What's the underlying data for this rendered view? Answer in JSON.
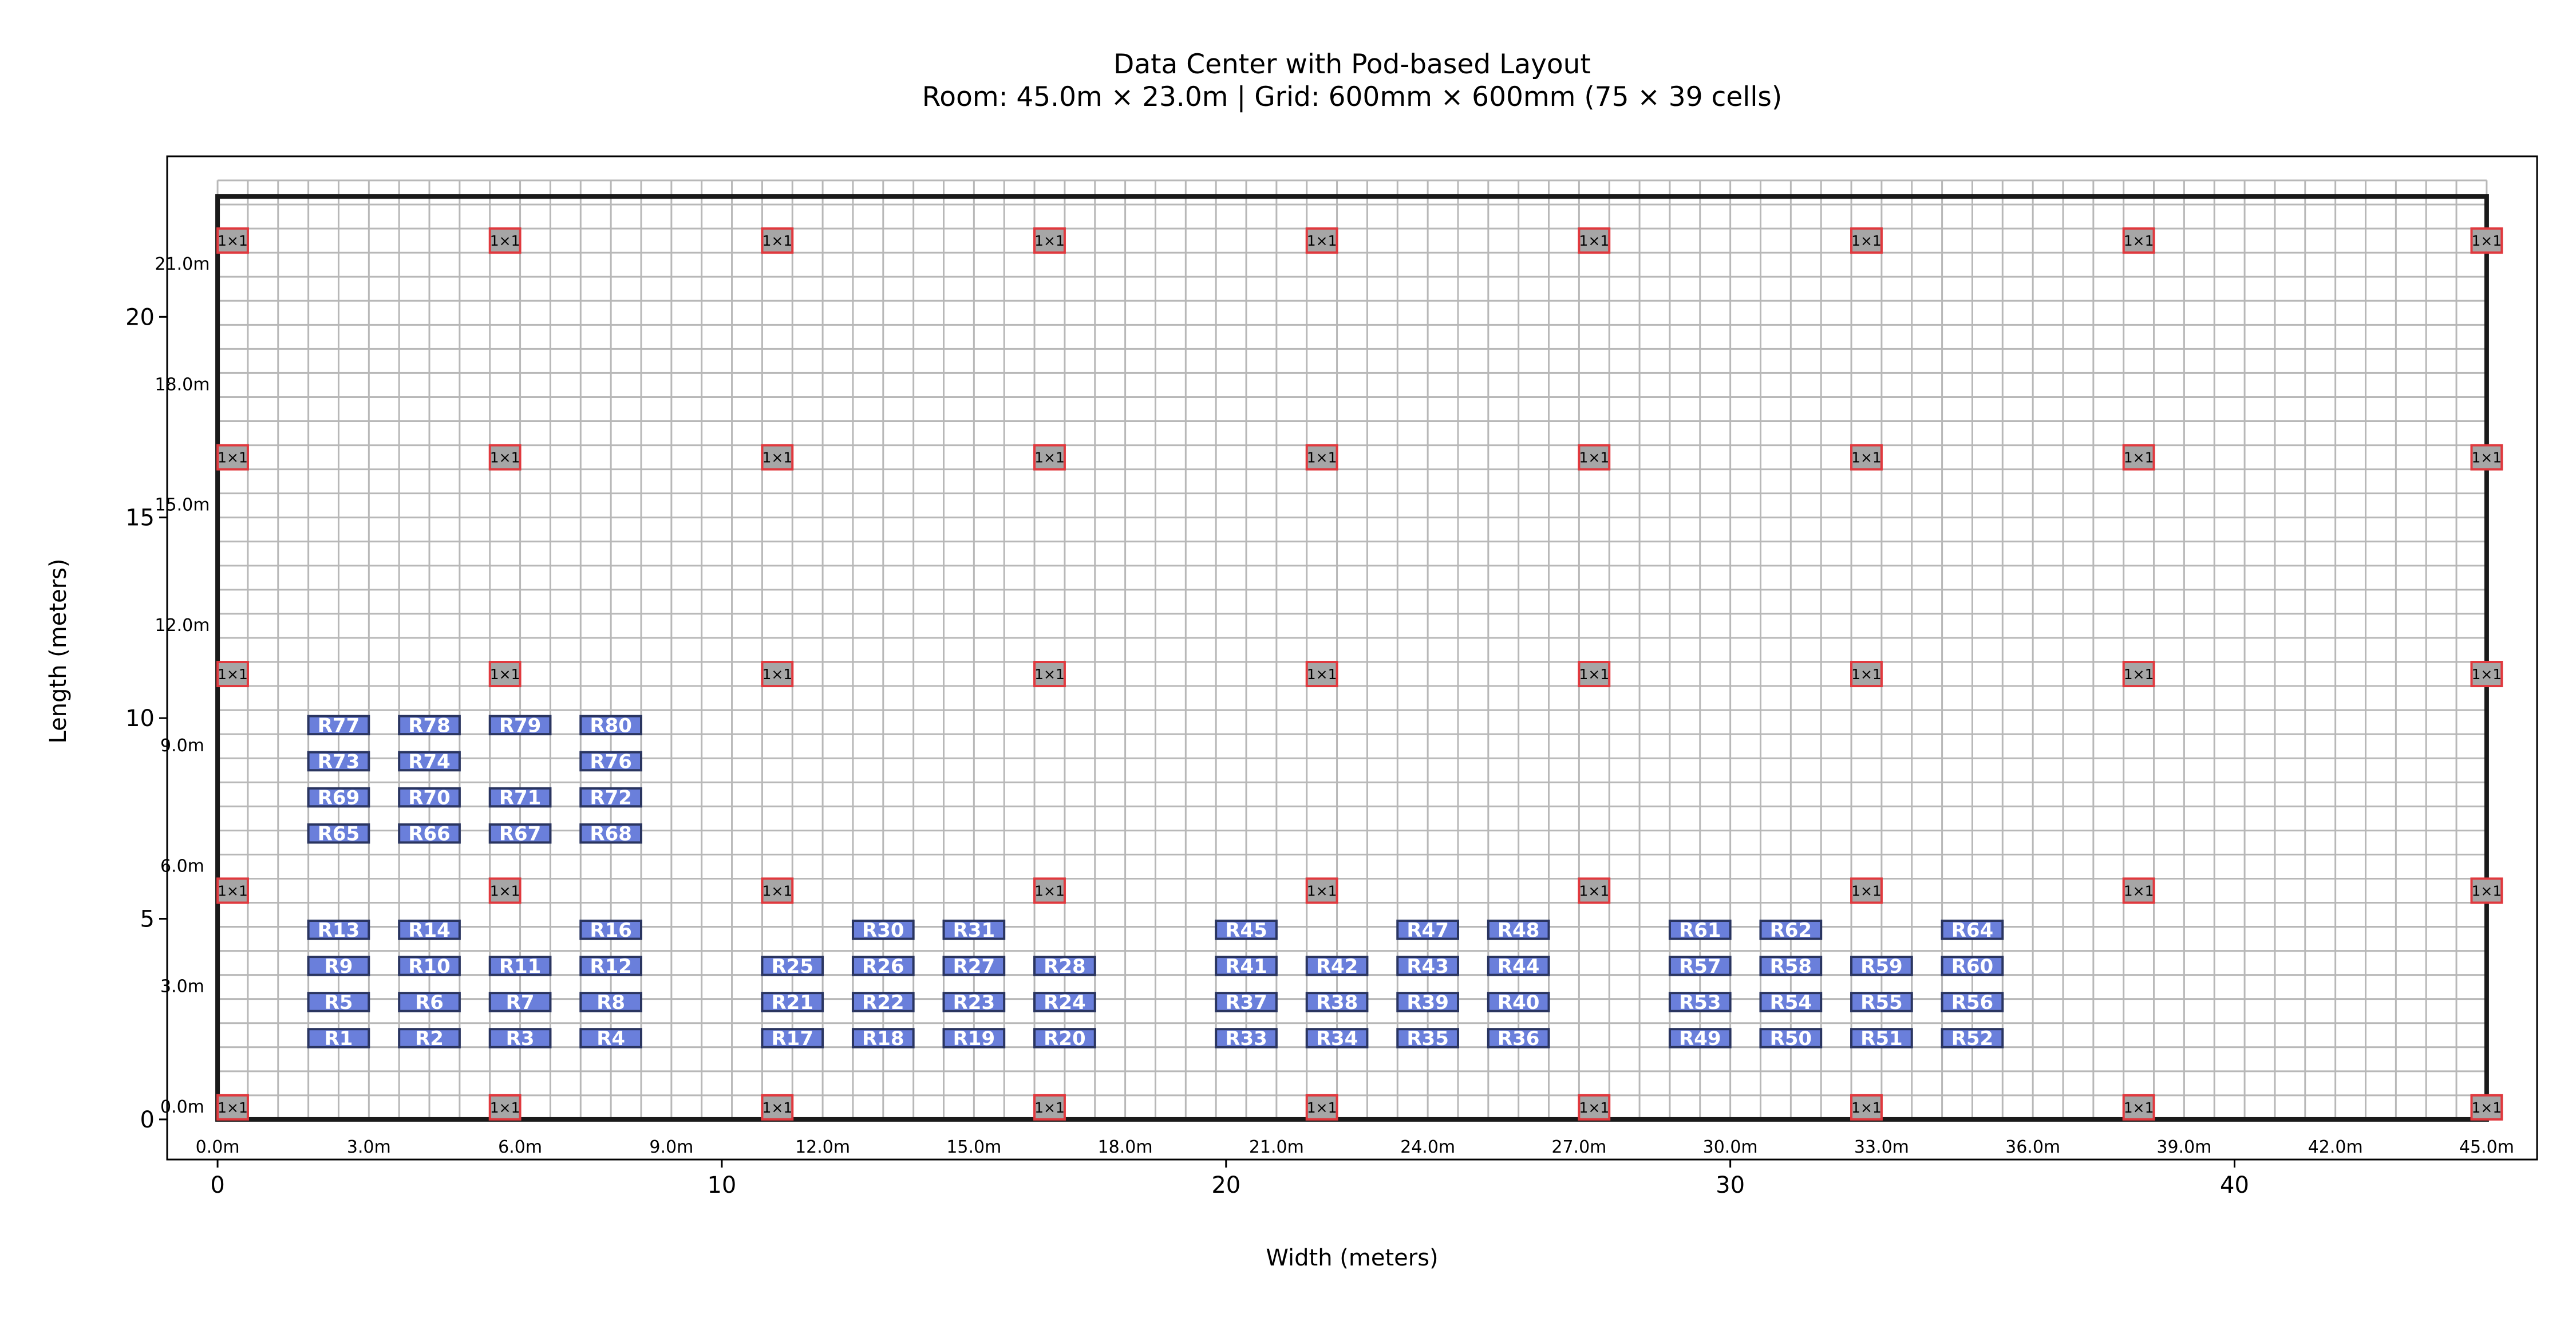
{
  "title_line1": "Data Center with Pod-based Layout",
  "title_line2": "Room: 45.0m × 23.0m | Grid: 600mm × 600mm (75 × 39 cells)",
  "xlabel": "Width (meters)",
  "ylabel": "Length (meters)",
  "colors": {
    "rack_fill": "#6a7fdb",
    "rack_edge": "#2a3560",
    "rack_text": "#ffffff",
    "column_fill": "#a6a6a6",
    "column_edge": "#e0393e",
    "grid_line": "#b8b8b8",
    "wall": "#1a1a1a"
  },
  "room": {
    "width_m": 45.0,
    "length_m": 23.0,
    "cell_m": 0.6,
    "cells_x": 75,
    "cells_y": 39
  },
  "axis": {
    "xlim": [
      -1.0,
      46.0
    ],
    "ylim": [
      -1.0,
      24.0
    ],
    "x_ticks": [
      0,
      10,
      20,
      30,
      40
    ],
    "y_ticks": [
      0,
      5,
      10,
      15,
      20
    ],
    "x_meter_labels": [
      {
        "v": 0,
        "t": "0.0m"
      },
      {
        "v": 3,
        "t": "3.0m"
      },
      {
        "v": 6,
        "t": "6.0m"
      },
      {
        "v": 9,
        "t": "9.0m"
      },
      {
        "v": 12,
        "t": "12.0m"
      },
      {
        "v": 15,
        "t": "15.0m"
      },
      {
        "v": 18,
        "t": "18.0m"
      },
      {
        "v": 21,
        "t": "21.0m"
      },
      {
        "v": 24,
        "t": "24.0m"
      },
      {
        "v": 27,
        "t": "27.0m"
      },
      {
        "v": 30,
        "t": "30.0m"
      },
      {
        "v": 33,
        "t": "33.0m"
      },
      {
        "v": 36,
        "t": "36.0m"
      },
      {
        "v": 39,
        "t": "39.0m"
      },
      {
        "v": 42,
        "t": "42.0m"
      },
      {
        "v": 45,
        "t": "45.0m"
      }
    ],
    "y_meter_labels": [
      {
        "v": 0,
        "t": "0.0m"
      },
      {
        "v": 3,
        "t": "3.0m"
      },
      {
        "v": 6,
        "t": "6.0m"
      },
      {
        "v": 9,
        "t": "9.0m"
      },
      {
        "v": 12,
        "t": "12.0m"
      },
      {
        "v": 15,
        "t": "15.0m"
      },
      {
        "v": 18,
        "t": "18.0m"
      },
      {
        "v": 21,
        "t": "21.0m"
      }
    ]
  },
  "column_label": "1×1",
  "column_xs": [
    0.3,
    5.7,
    11.1,
    16.5,
    21.9,
    27.3,
    32.7,
    38.1,
    45.0
  ],
  "column_rows": [
    {
      "y": 0.3,
      "xs": [
        0.3,
        5.7,
        11.1,
        16.5,
        21.9,
        27.3,
        32.7,
        38.1,
        45.0
      ]
    },
    {
      "y": 5.7,
      "xs": [
        0.3,
        5.7,
        11.1,
        16.5,
        21.9,
        27.3,
        32.7,
        38.1,
        45.0
      ]
    },
    {
      "y": 11.1,
      "xs": [
        0.3,
        5.7,
        11.1,
        16.5,
        21.9,
        27.3,
        32.7,
        38.1,
        45.0
      ]
    },
    {
      "y": 16.5,
      "xs": [
        0.3,
        5.7,
        11.1,
        16.5,
        21.9,
        27.3,
        32.7,
        38.1,
        45.0
      ]
    },
    {
      "y": 21.9,
      "xs": [
        0.3,
        5.7,
        11.1,
        16.5,
        21.9,
        27.3,
        32.7,
        38.1,
        45.0
      ]
    }
  ],
  "rack_rows": [
    {
      "y": 1.8,
      "labels": [
        "R1",
        "R2",
        "R3",
        "R4",
        "R17",
        "R18",
        "R19",
        "R20",
        "R33",
        "R34",
        "R35",
        "R36",
        "R49",
        "R50",
        "R51",
        "R52"
      ]
    },
    {
      "y": 2.7,
      "labels": [
        "R5",
        "R6",
        "R7",
        "R8",
        "R21",
        "R22",
        "R23",
        "R24",
        "R37",
        "R38",
        "R39",
        "R40",
        "R53",
        "R54",
        "R55",
        "R56"
      ]
    },
    {
      "y": 3.6,
      "labels": [
        "R9",
        "R10",
        "R11",
        "R12",
        "R25",
        "R26",
        "R27",
        "R28",
        "R41",
        "R42",
        "R43",
        "R44",
        "R57",
        "R58",
        "R59",
        "R60"
      ]
    },
    {
      "y": 4.5,
      "labels": [
        "R13",
        "R14",
        "",
        "R16",
        "",
        "R30",
        "R31",
        "",
        "R45",
        "",
        "R47",
        "R48",
        "R61",
        "R62",
        "",
        "R64"
      ]
    },
    {
      "y": 6.9,
      "labels": [
        "R65",
        "R66",
        "R67",
        "R68"
      ]
    },
    {
      "y": 7.8,
      "labels": [
        "R69",
        "R70",
        "R71",
        "R72"
      ]
    },
    {
      "y": 8.7,
      "labels": [
        "R73",
        "R74",
        "",
        "R76"
      ]
    },
    {
      "y": 9.6,
      "labels": [
        "R77",
        "R78",
        "R79",
        "R80"
      ]
    }
  ],
  "rack_col_xs": [
    1.8,
    3.6,
    5.4,
    7.2,
    10.8,
    12.6,
    14.4,
    16.2,
    19.8,
    21.6,
    23.4,
    25.2,
    28.8,
    30.6,
    32.4,
    34.2
  ]
}
